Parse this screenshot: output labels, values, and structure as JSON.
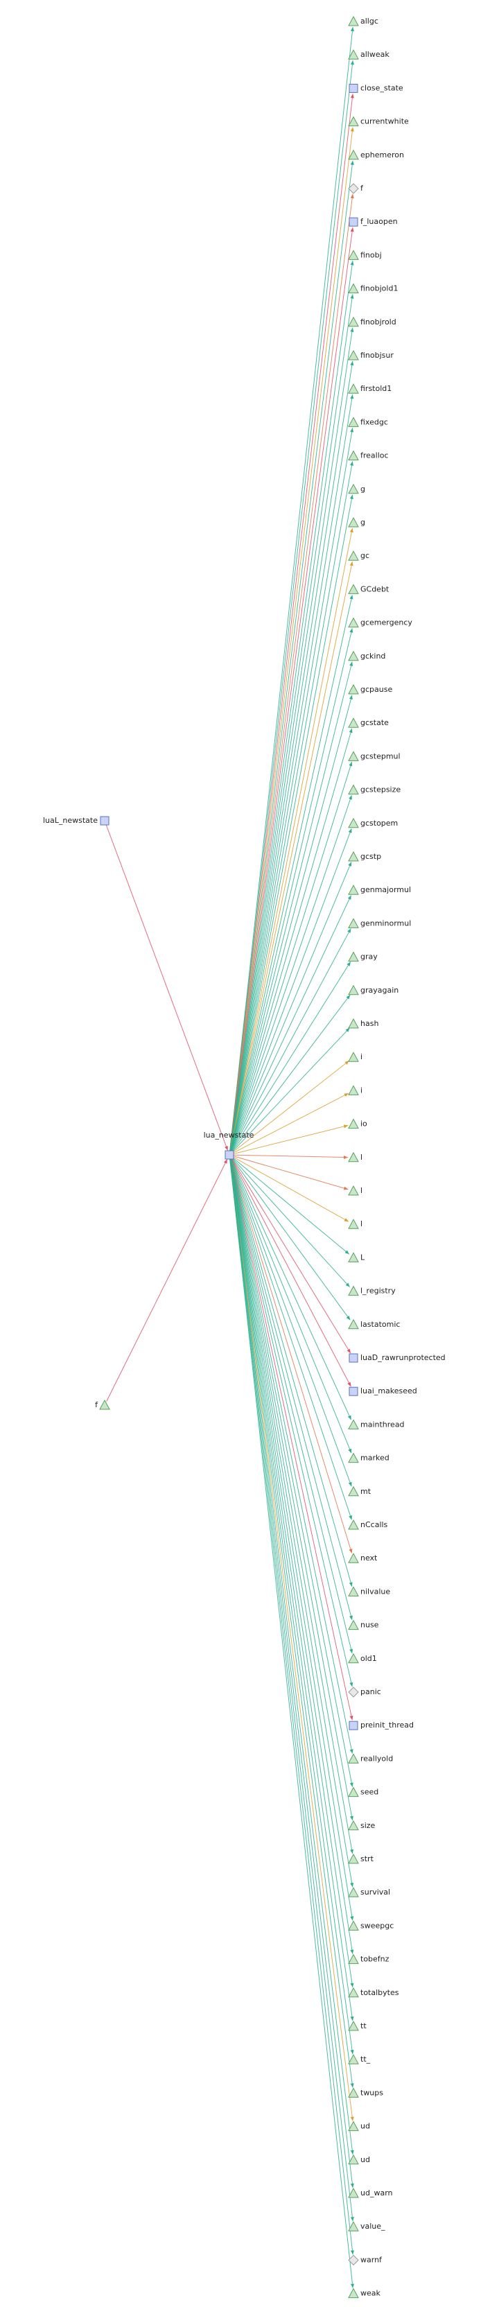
{
  "graph": {
    "center": {
      "label": "lua_newstate",
      "shape": "square"
    },
    "sources": [
      {
        "label": "luaL_newstate",
        "shape": "square",
        "edge_color": "#e0526a"
      },
      {
        "label": "f",
        "shape": "triangle",
        "edge_color": "#e0526a"
      }
    ],
    "targets": [
      {
        "label": "allgc",
        "shape": "triangle",
        "edge_color": "#2bb08f"
      },
      {
        "label": "allweak",
        "shape": "triangle",
        "edge_color": "#2bb08f"
      },
      {
        "label": "close_state",
        "shape": "square",
        "edge_color": "#e0526a"
      },
      {
        "label": "currentwhite",
        "shape": "triangle",
        "edge_color": "#d9a030"
      },
      {
        "label": "ephemeron",
        "shape": "triangle",
        "edge_color": "#2bb08f"
      },
      {
        "label": "f",
        "shape": "diamond",
        "edge_color": "#e07850"
      },
      {
        "label": "f_luaopen",
        "shape": "square",
        "edge_color": "#e0526a"
      },
      {
        "label": "finobj",
        "shape": "triangle",
        "edge_color": "#2bb08f"
      },
      {
        "label": "finobjold1",
        "shape": "triangle",
        "edge_color": "#2bb08f"
      },
      {
        "label": "finobjrold",
        "shape": "triangle",
        "edge_color": "#2bb08f"
      },
      {
        "label": "finobjsur",
        "shape": "triangle",
        "edge_color": "#2bb08f"
      },
      {
        "label": "firstold1",
        "shape": "triangle",
        "edge_color": "#2bb08f"
      },
      {
        "label": "fixedgc",
        "shape": "triangle",
        "edge_color": "#2bb08f"
      },
      {
        "label": "frealloc",
        "shape": "triangle",
        "edge_color": "#2bb08f"
      },
      {
        "label": "g",
        "shape": "triangle",
        "edge_color": "#2bb08f"
      },
      {
        "label": "g",
        "shape": "triangle",
        "edge_color": "#d9a030"
      },
      {
        "label": "gc",
        "shape": "triangle",
        "edge_color": "#d9a030"
      },
      {
        "label": "GCdebt",
        "shape": "triangle",
        "edge_color": "#2bb08f"
      },
      {
        "label": "gcemergency",
        "shape": "triangle",
        "edge_color": "#2bb08f"
      },
      {
        "label": "gckind",
        "shape": "triangle",
        "edge_color": "#2bb08f"
      },
      {
        "label": "gcpause",
        "shape": "triangle",
        "edge_color": "#2bb08f"
      },
      {
        "label": "gcstate",
        "shape": "triangle",
        "edge_color": "#2bb08f"
      },
      {
        "label": "gcstepmul",
        "shape": "triangle",
        "edge_color": "#2bb08f"
      },
      {
        "label": "gcstepsize",
        "shape": "triangle",
        "edge_color": "#2bb08f"
      },
      {
        "label": "gcstopem",
        "shape": "triangle",
        "edge_color": "#2bb08f"
      },
      {
        "label": "gcstp",
        "shape": "triangle",
        "edge_color": "#2bb08f"
      },
      {
        "label": "genmajormul",
        "shape": "triangle",
        "edge_color": "#2bb08f"
      },
      {
        "label": "genminormul",
        "shape": "triangle",
        "edge_color": "#2bb08f"
      },
      {
        "label": "gray",
        "shape": "triangle",
        "edge_color": "#2bb08f"
      },
      {
        "label": "grayagain",
        "shape": "triangle",
        "edge_color": "#2bb08f"
      },
      {
        "label": "hash",
        "shape": "triangle",
        "edge_color": "#2bb08f"
      },
      {
        "label": "i",
        "shape": "triangle",
        "edge_color": "#d9a030"
      },
      {
        "label": "i",
        "shape": "triangle",
        "edge_color": "#d9a030"
      },
      {
        "label": "io",
        "shape": "triangle",
        "edge_color": "#d9a030"
      },
      {
        "label": "l",
        "shape": "triangle",
        "edge_color": "#e07850"
      },
      {
        "label": "l",
        "shape": "triangle",
        "edge_color": "#e07850"
      },
      {
        "label": "l",
        "shape": "triangle",
        "edge_color": "#d9a030"
      },
      {
        "label": "L",
        "shape": "triangle",
        "edge_color": "#2bb08f"
      },
      {
        "label": "l_registry",
        "shape": "triangle",
        "edge_color": "#2bb08f"
      },
      {
        "label": "lastatomic",
        "shape": "triangle",
        "edge_color": "#2bb08f"
      },
      {
        "label": "luaD_rawrunprotected",
        "shape": "square",
        "edge_color": "#e0526a"
      },
      {
        "label": "luai_makeseed",
        "shape": "square",
        "edge_color": "#e0526a"
      },
      {
        "label": "mainthread",
        "shape": "triangle",
        "edge_color": "#2bb08f"
      },
      {
        "label": "marked",
        "shape": "triangle",
        "edge_color": "#2bb08f"
      },
      {
        "label": "mt",
        "shape": "triangle",
        "edge_color": "#2bb08f"
      },
      {
        "label": "nCcalls",
        "shape": "triangle",
        "edge_color": "#2bb08f"
      },
      {
        "label": "next",
        "shape": "triangle",
        "edge_color": "#e07850"
      },
      {
        "label": "nilvalue",
        "shape": "triangle",
        "edge_color": "#2bb08f"
      },
      {
        "label": "nuse",
        "shape": "triangle",
        "edge_color": "#2bb08f"
      },
      {
        "label": "old1",
        "shape": "triangle",
        "edge_color": "#2bb08f"
      },
      {
        "label": "panic",
        "shape": "diamond",
        "edge_color": "#2bb08f"
      },
      {
        "label": "preinit_thread",
        "shape": "square",
        "edge_color": "#e0526a"
      },
      {
        "label": "reallyold",
        "shape": "triangle",
        "edge_color": "#2bb08f"
      },
      {
        "label": "seed",
        "shape": "triangle",
        "edge_color": "#2bb08f"
      },
      {
        "label": "size",
        "shape": "triangle",
        "edge_color": "#2bb08f"
      },
      {
        "label": "strt",
        "shape": "triangle",
        "edge_color": "#2bb08f"
      },
      {
        "label": "survival",
        "shape": "triangle",
        "edge_color": "#2bb08f"
      },
      {
        "label": "sweepgc",
        "shape": "triangle",
        "edge_color": "#2bb08f"
      },
      {
        "label": "tobefnz",
        "shape": "triangle",
        "edge_color": "#2bb08f"
      },
      {
        "label": "totalbytes",
        "shape": "triangle",
        "edge_color": "#2bb08f"
      },
      {
        "label": "tt",
        "shape": "triangle",
        "edge_color": "#2bb08f"
      },
      {
        "label": "tt_",
        "shape": "triangle",
        "edge_color": "#2bb08f"
      },
      {
        "label": "twups",
        "shape": "triangle",
        "edge_color": "#2bb08f"
      },
      {
        "label": "ud",
        "shape": "triangle",
        "edge_color": "#d9a030"
      },
      {
        "label": "ud",
        "shape": "triangle",
        "edge_color": "#2bb08f"
      },
      {
        "label": "ud_warn",
        "shape": "triangle",
        "edge_color": "#2bb08f"
      },
      {
        "label": "value_",
        "shape": "triangle",
        "edge_color": "#2bb08f"
      },
      {
        "label": "warnf",
        "shape": "diamond",
        "edge_color": "#2bb08f"
      },
      {
        "label": "weak",
        "shape": "triangle",
        "edge_color": "#2bb08f"
      }
    ],
    "colors": {
      "node_fill": "#c8e6c8",
      "node_stroke": "#5aa05a",
      "square_fill": "#c9d4f5",
      "square_stroke": "#5a6fc8",
      "diamond_fill": "#e8e8e8",
      "diamond_stroke": "#999999",
      "call_edge": "#e0526a",
      "field_edge": "#2bb08f",
      "read_edge": "#d9a030",
      "local_edge": "#e07850"
    }
  }
}
